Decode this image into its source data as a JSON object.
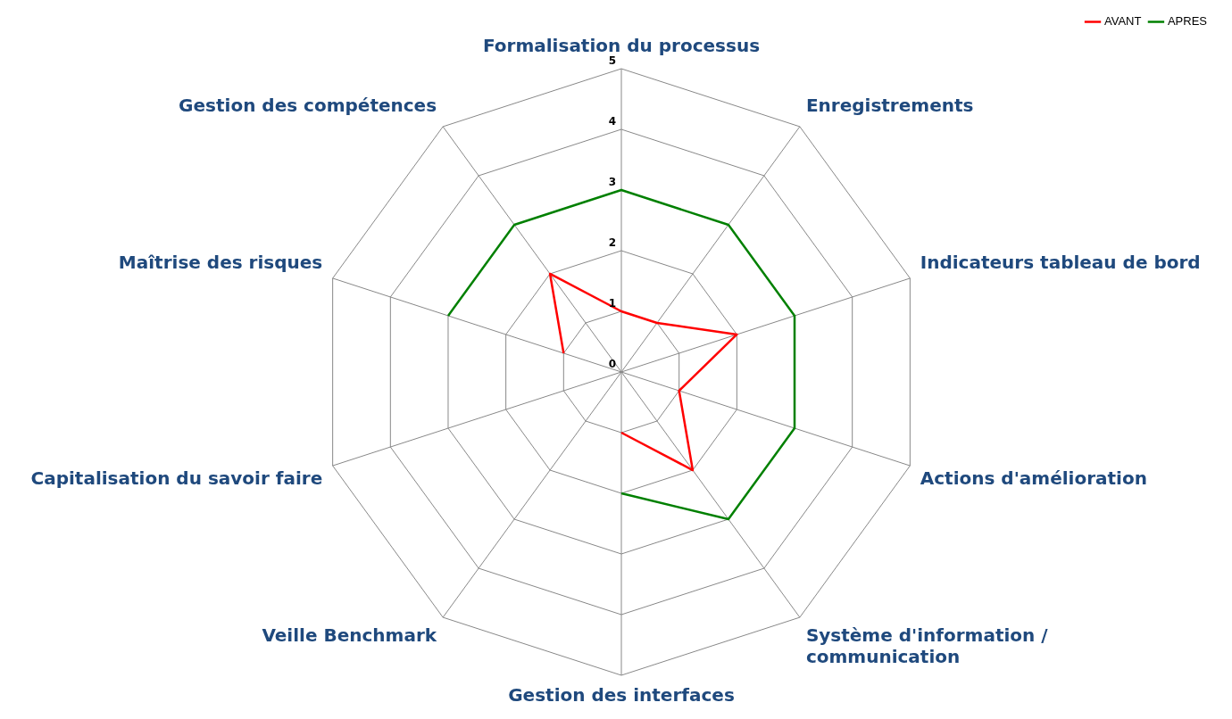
{
  "chart_data": {
    "type": "radar",
    "categories": [
      "Formalisation du processus",
      "Enregistrements",
      "Indicateurs tableau de bord",
      "Actions d'amélioration",
      "Système d'information / communication",
      "Gestion des interfaces",
      "Veille Benchmark",
      "Capitalisation du savoir faire",
      "Maîtrise des risques",
      "Gestion des compétences"
    ],
    "series": [
      {
        "name": "AVANT",
        "color": "#ff0000",
        "values": [
          1,
          1,
          2,
          1,
          2,
          1,
          null,
          null,
          1,
          2
        ]
      },
      {
        "name": "APRES",
        "color": "#008000",
        "values": [
          3,
          3,
          3,
          3,
          3,
          2,
          null,
          null,
          3,
          3
        ]
      }
    ],
    "ylim": [
      0,
      5
    ],
    "yticks": [
      0,
      1,
      2,
      3,
      4,
      5
    ],
    "grid": true,
    "legend": "top right",
    "marker": "none",
    "line_style": "solid"
  }
}
